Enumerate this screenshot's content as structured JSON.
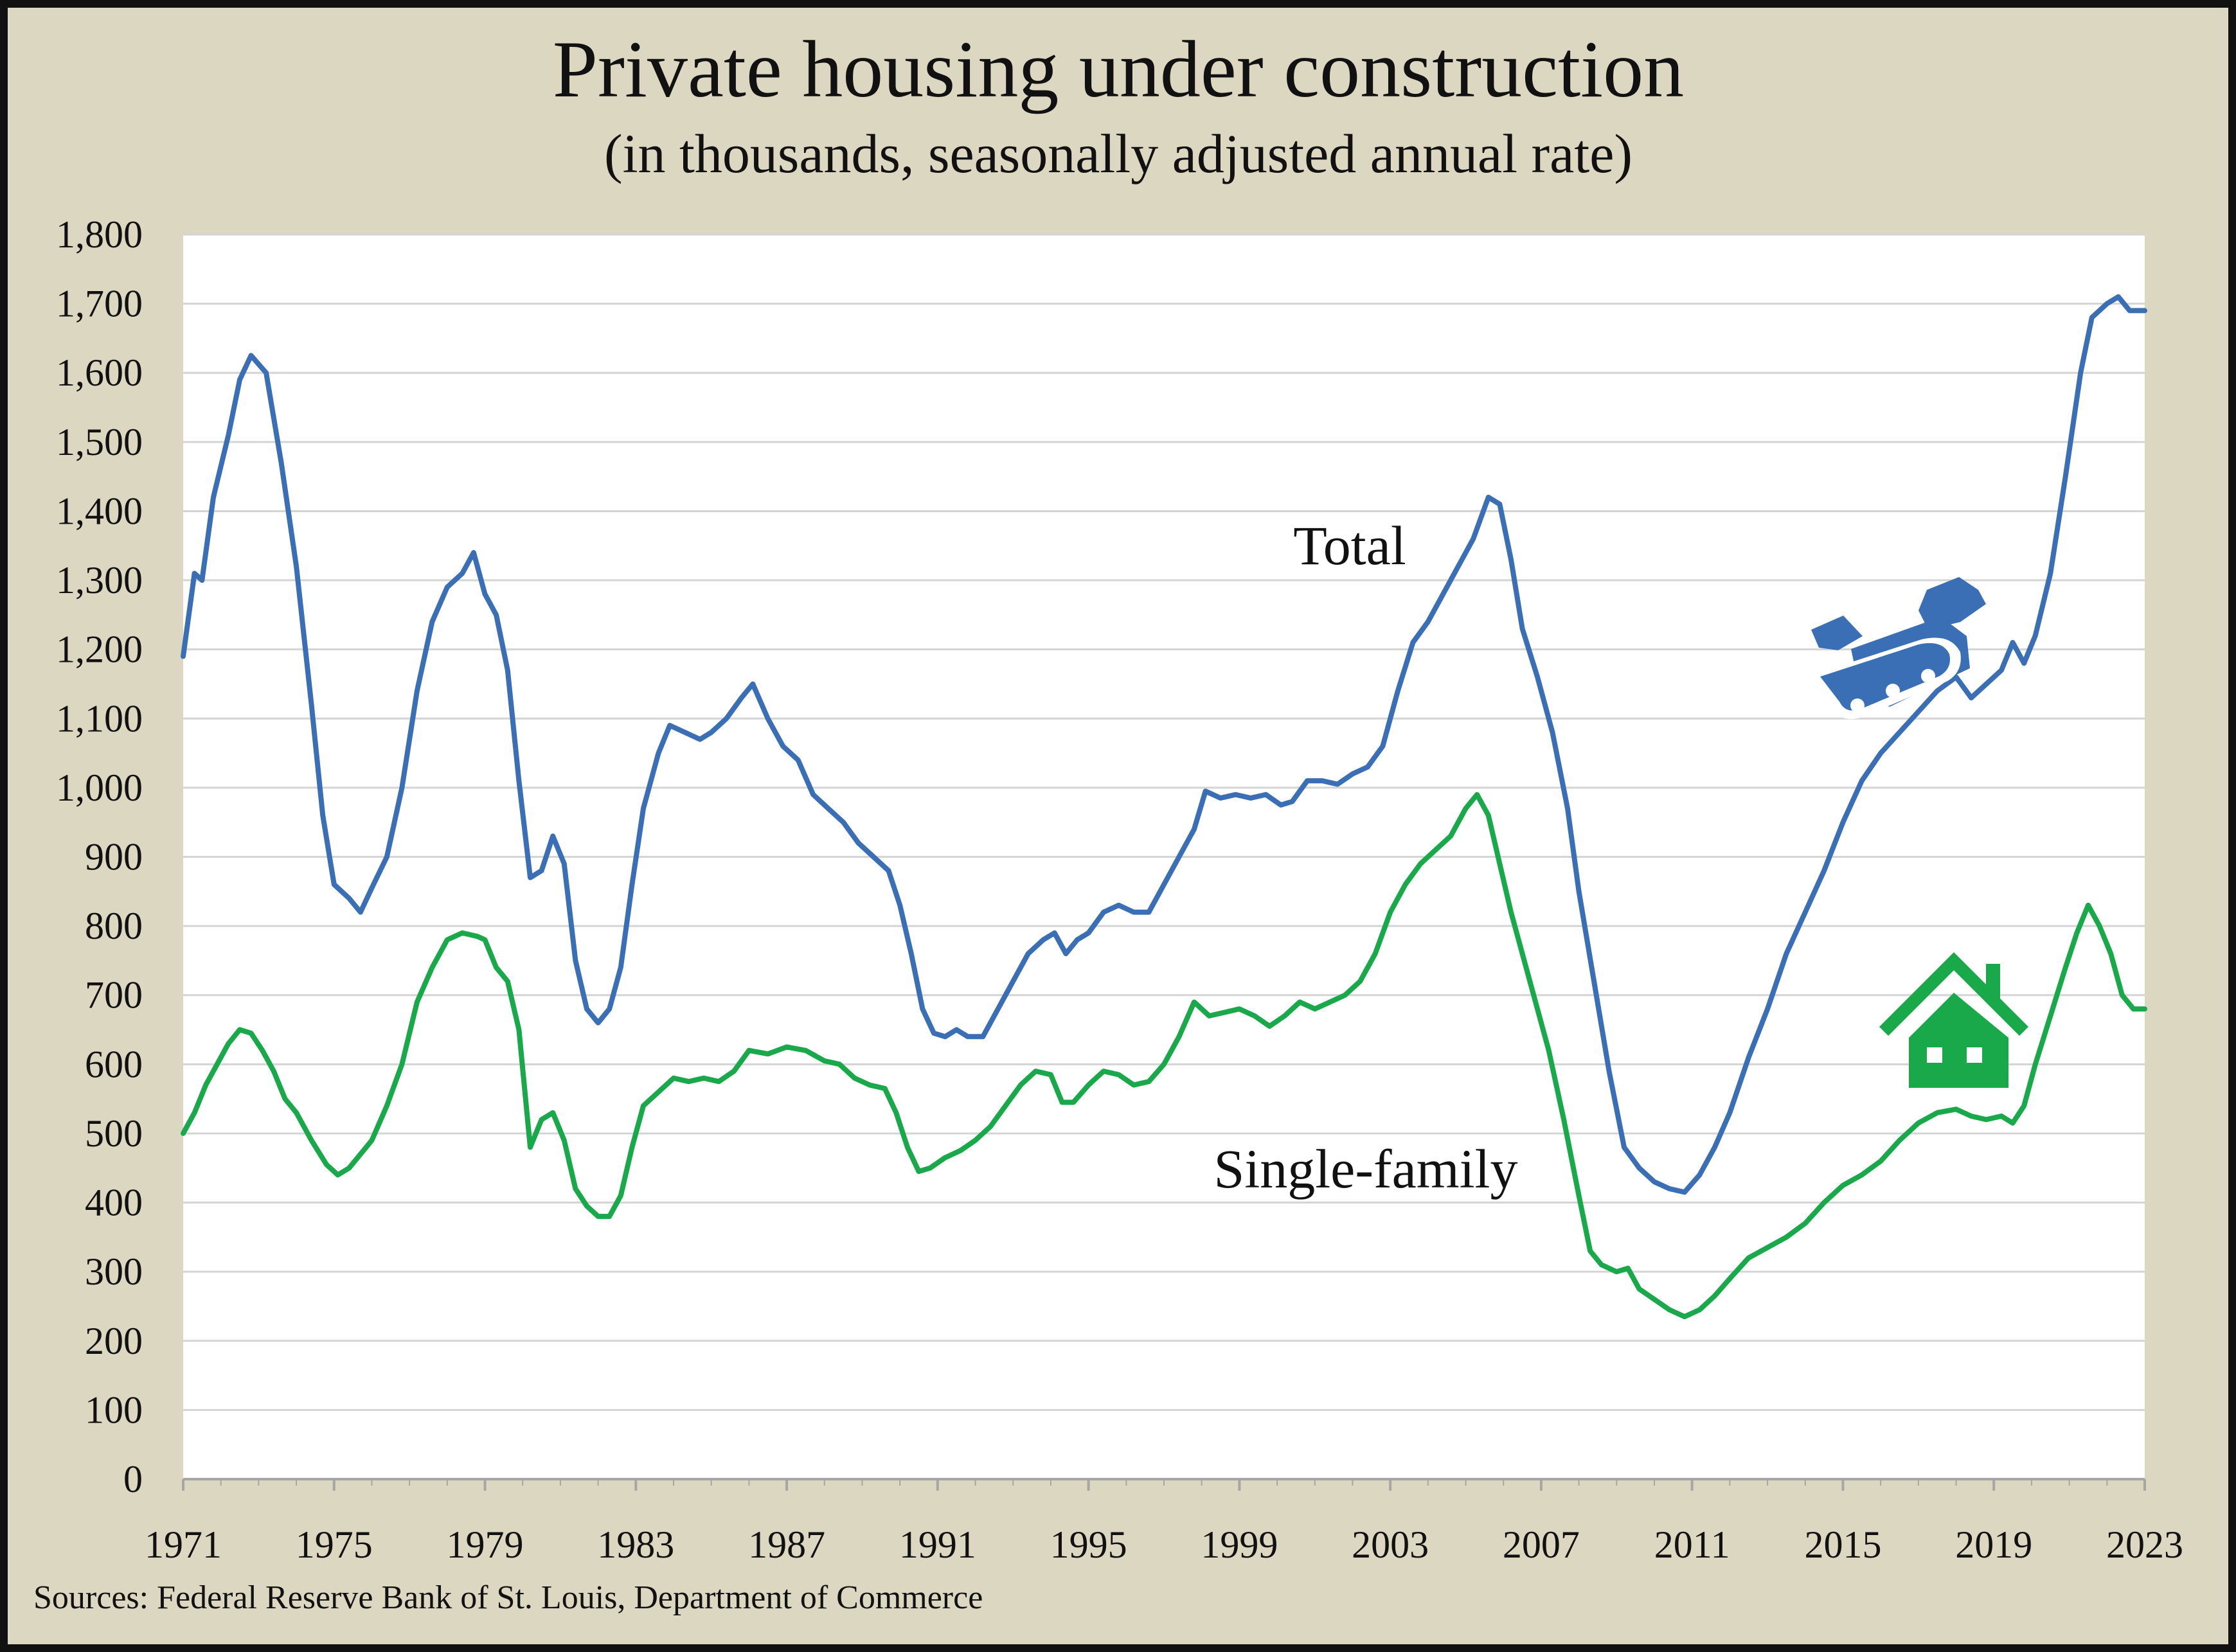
{
  "chart_data": {
    "type": "line",
    "title": "Private housing under construction",
    "subtitle": "(in thousands, seasonally adjusted annual rate)",
    "source": "Sources: Federal Reserve Bank of St. Louis, Department of Commerce",
    "xlabel": "",
    "ylabel": "",
    "xlim": [
      1971,
      2023
    ],
    "ylim": [
      0,
      1800
    ],
    "x_ticks": [
      "1971",
      "1975",
      "1979",
      "1983",
      "1987",
      "1991",
      "1995",
      "1999",
      "2003",
      "2007",
      "2011",
      "2015",
      "2019",
      "2023"
    ],
    "y_ticks": [
      "0",
      "100",
      "200",
      "300",
      "400",
      "500",
      "600",
      "700",
      "800",
      "900",
      "1,000",
      "1,100",
      "1,200",
      "1,300",
      "1,400",
      "1,500",
      "1,600",
      "1,700",
      "1,800"
    ],
    "grid": "horizontal",
    "series": [
      {
        "name": "Total",
        "color": "#3a6fb5",
        "icon": "bulldozer-icon",
        "points": [
          [
            1971.0,
            1190
          ],
          [
            1971.3,
            1310
          ],
          [
            1971.5,
            1300
          ],
          [
            1971.8,
            1420
          ],
          [
            1972.2,
            1510
          ],
          [
            1972.5,
            1590
          ],
          [
            1972.8,
            1625
          ],
          [
            1973.2,
            1600
          ],
          [
            1973.6,
            1470
          ],
          [
            1974.0,
            1320
          ],
          [
            1974.4,
            1120
          ],
          [
            1974.7,
            960
          ],
          [
            1975.0,
            860
          ],
          [
            1975.4,
            840
          ],
          [
            1975.7,
            820
          ],
          [
            1976.0,
            855
          ],
          [
            1976.4,
            900
          ],
          [
            1976.8,
            1000
          ],
          [
            1977.2,
            1140
          ],
          [
            1977.6,
            1240
          ],
          [
            1978.0,
            1290
          ],
          [
            1978.4,
            1310
          ],
          [
            1978.7,
            1340
          ],
          [
            1979.0,
            1280
          ],
          [
            1979.3,
            1250
          ],
          [
            1979.6,
            1170
          ],
          [
            1979.9,
            1010
          ],
          [
            1980.2,
            870
          ],
          [
            1980.5,
            880
          ],
          [
            1980.8,
            930
          ],
          [
            1981.1,
            890
          ],
          [
            1981.4,
            750
          ],
          [
            1981.7,
            680
          ],
          [
            1982.0,
            660
          ],
          [
            1982.3,
            680
          ],
          [
            1982.6,
            740
          ],
          [
            1982.9,
            860
          ],
          [
            1983.2,
            970
          ],
          [
            1983.6,
            1050
          ],
          [
            1983.9,
            1090
          ],
          [
            1984.3,
            1080
          ],
          [
            1984.7,
            1070
          ],
          [
            1985.0,
            1080
          ],
          [
            1985.4,
            1100
          ],
          [
            1985.8,
            1130
          ],
          [
            1986.1,
            1150
          ],
          [
            1986.5,
            1100
          ],
          [
            1986.9,
            1060
          ],
          [
            1987.3,
            1040
          ],
          [
            1987.7,
            990
          ],
          [
            1988.1,
            970
          ],
          [
            1988.5,
            950
          ],
          [
            1988.9,
            920
          ],
          [
            1989.3,
            900
          ],
          [
            1989.7,
            880
          ],
          [
            1990.0,
            830
          ],
          [
            1990.3,
            760
          ],
          [
            1990.6,
            680
          ],
          [
            1990.9,
            645
          ],
          [
            1991.2,
            640
          ],
          [
            1991.5,
            650
          ],
          [
            1991.8,
            640
          ],
          [
            1992.2,
            640
          ],
          [
            1992.6,
            680
          ],
          [
            1993.0,
            720
          ],
          [
            1993.4,
            760
          ],
          [
            1993.8,
            780
          ],
          [
            1994.1,
            790
          ],
          [
            1994.4,
            760
          ],
          [
            1994.7,
            780
          ],
          [
            1995.0,
            790
          ],
          [
            1995.4,
            820
          ],
          [
            1995.8,
            830
          ],
          [
            1996.2,
            820
          ],
          [
            1996.6,
            820
          ],
          [
            1997.0,
            860
          ],
          [
            1997.4,
            900
          ],
          [
            1997.8,
            940
          ],
          [
            1998.1,
            995
          ],
          [
            1998.5,
            985
          ],
          [
            1998.9,
            990
          ],
          [
            1999.3,
            985
          ],
          [
            1999.7,
            990
          ],
          [
            2000.1,
            975
          ],
          [
            2000.4,
            980
          ],
          [
            2000.8,
            1010
          ],
          [
            2001.2,
            1010
          ],
          [
            2001.6,
            1005
          ],
          [
            2002.0,
            1020
          ],
          [
            2002.4,
            1030
          ],
          [
            2002.8,
            1060
          ],
          [
            2003.2,
            1140
          ],
          [
            2003.6,
            1210
          ],
          [
            2004.0,
            1240
          ],
          [
            2004.4,
            1280
          ],
          [
            2004.8,
            1320
          ],
          [
            2005.2,
            1360
          ],
          [
            2005.6,
            1420
          ],
          [
            2005.9,
            1410
          ],
          [
            2006.2,
            1330
          ],
          [
            2006.5,
            1230
          ],
          [
            2006.9,
            1160
          ],
          [
            2007.3,
            1080
          ],
          [
            2007.7,
            970
          ],
          [
            2008.0,
            850
          ],
          [
            2008.4,
            720
          ],
          [
            2008.8,
            590
          ],
          [
            2009.2,
            480
          ],
          [
            2009.6,
            450
          ],
          [
            2010.0,
            430
          ],
          [
            2010.4,
            420
          ],
          [
            2010.8,
            415
          ],
          [
            2011.2,
            440
          ],
          [
            2011.6,
            480
          ],
          [
            2012.0,
            530
          ],
          [
            2012.5,
            610
          ],
          [
            2013.0,
            680
          ],
          [
            2013.5,
            760
          ],
          [
            2014.0,
            820
          ],
          [
            2014.5,
            880
          ],
          [
            2015.0,
            950
          ],
          [
            2015.5,
            1010
          ],
          [
            2016.0,
            1050
          ],
          [
            2016.5,
            1080
          ],
          [
            2017.0,
            1110
          ],
          [
            2017.5,
            1140
          ],
          [
            2018.0,
            1160
          ],
          [
            2018.4,
            1130
          ],
          [
            2018.8,
            1150
          ],
          [
            2019.2,
            1170
          ],
          [
            2019.5,
            1210
          ],
          [
            2019.8,
            1180
          ],
          [
            2020.1,
            1220
          ],
          [
            2020.5,
            1310
          ],
          [
            2020.9,
            1450
          ],
          [
            2021.3,
            1600
          ],
          [
            2021.6,
            1680
          ],
          [
            2022.0,
            1700
          ],
          [
            2022.3,
            1710
          ],
          [
            2022.6,
            1690
          ],
          [
            2023.0,
            1690
          ]
        ]
      },
      {
        "name": "Single-family",
        "color": "#19a84a",
        "icon": "house-icon",
        "points": [
          [
            1971.0,
            500
          ],
          [
            1971.3,
            530
          ],
          [
            1971.6,
            570
          ],
          [
            1971.9,
            600
          ],
          [
            1972.2,
            630
          ],
          [
            1972.5,
            650
          ],
          [
            1972.8,
            645
          ],
          [
            1973.1,
            620
          ],
          [
            1973.4,
            590
          ],
          [
            1973.7,
            550
          ],
          [
            1974.0,
            530
          ],
          [
            1974.4,
            490
          ],
          [
            1974.8,
            455
          ],
          [
            1975.1,
            440
          ],
          [
            1975.4,
            450
          ],
          [
            1975.7,
            470
          ],
          [
            1976.0,
            490
          ],
          [
            1976.4,
            540
          ],
          [
            1976.8,
            600
          ],
          [
            1977.2,
            690
          ],
          [
            1977.6,
            740
          ],
          [
            1978.0,
            780
          ],
          [
            1978.4,
            790
          ],
          [
            1978.8,
            785
          ],
          [
            1979.0,
            780
          ],
          [
            1979.3,
            740
          ],
          [
            1979.6,
            720
          ],
          [
            1979.9,
            650
          ],
          [
            1980.2,
            480
          ],
          [
            1980.5,
            520
          ],
          [
            1980.8,
            530
          ],
          [
            1981.1,
            490
          ],
          [
            1981.4,
            420
          ],
          [
            1981.7,
            395
          ],
          [
            1982.0,
            380
          ],
          [
            1982.3,
            380
          ],
          [
            1982.6,
            410
          ],
          [
            1982.9,
            480
          ],
          [
            1983.2,
            540
          ],
          [
            1983.6,
            560
          ],
          [
            1984.0,
            580
          ],
          [
            1984.4,
            575
          ],
          [
            1984.8,
            580
          ],
          [
            1985.2,
            575
          ],
          [
            1985.6,
            590
          ],
          [
            1986.0,
            620
          ],
          [
            1986.5,
            615
          ],
          [
            1987.0,
            625
          ],
          [
            1987.5,
            620
          ],
          [
            1988.0,
            605
          ],
          [
            1988.4,
            600
          ],
          [
            1988.8,
            580
          ],
          [
            1989.2,
            570
          ],
          [
            1989.6,
            565
          ],
          [
            1989.9,
            530
          ],
          [
            1990.2,
            480
          ],
          [
            1990.5,
            445
          ],
          [
            1990.8,
            450
          ],
          [
            1991.2,
            465
          ],
          [
            1991.6,
            475
          ],
          [
            1992.0,
            490
          ],
          [
            1992.4,
            510
          ],
          [
            1992.8,
            540
          ],
          [
            1993.2,
            570
          ],
          [
            1993.6,
            590
          ],
          [
            1994.0,
            585
          ],
          [
            1994.3,
            545
          ],
          [
            1994.6,
            545
          ],
          [
            1995.0,
            570
          ],
          [
            1995.4,
            590
          ],
          [
            1995.8,
            585
          ],
          [
            1996.2,
            570
          ],
          [
            1996.6,
            575
          ],
          [
            1997.0,
            600
          ],
          [
            1997.4,
            640
          ],
          [
            1997.8,
            690
          ],
          [
            1998.2,
            670
          ],
          [
            1998.6,
            675
          ],
          [
            1999.0,
            680
          ],
          [
            1999.4,
            670
          ],
          [
            1999.8,
            655
          ],
          [
            2000.2,
            670
          ],
          [
            2000.6,
            690
          ],
          [
            2001.0,
            680
          ],
          [
            2001.4,
            690
          ],
          [
            2001.8,
            700
          ],
          [
            2002.2,
            720
          ],
          [
            2002.6,
            760
          ],
          [
            2003.0,
            820
          ],
          [
            2003.4,
            860
          ],
          [
            2003.8,
            890
          ],
          [
            2004.2,
            910
          ],
          [
            2004.6,
            930
          ],
          [
            2005.0,
            970
          ],
          [
            2005.3,
            990
          ],
          [
            2005.6,
            960
          ],
          [
            2005.9,
            890
          ],
          [
            2006.2,
            820
          ],
          [
            2006.5,
            760
          ],
          [
            2006.8,
            700
          ],
          [
            2007.2,
            620
          ],
          [
            2007.6,
            520
          ],
          [
            2008.0,
            410
          ],
          [
            2008.3,
            330
          ],
          [
            2008.6,
            310
          ],
          [
            2009.0,
            300
          ],
          [
            2009.3,
            305
          ],
          [
            2009.6,
            275
          ],
          [
            2010.0,
            260
          ],
          [
            2010.4,
            245
          ],
          [
            2010.8,
            235
          ],
          [
            2011.2,
            245
          ],
          [
            2011.6,
            265
          ],
          [
            2012.0,
            290
          ],
          [
            2012.5,
            320
          ],
          [
            2013.0,
            335
          ],
          [
            2013.5,
            350
          ],
          [
            2014.0,
            370
          ],
          [
            2014.5,
            400
          ],
          [
            2015.0,
            425
          ],
          [
            2015.5,
            440
          ],
          [
            2016.0,
            460
          ],
          [
            2016.5,
            490
          ],
          [
            2017.0,
            515
          ],
          [
            2017.5,
            530
          ],
          [
            2018.0,
            535
          ],
          [
            2018.4,
            525
          ],
          [
            2018.8,
            520
          ],
          [
            2019.2,
            525
          ],
          [
            2019.5,
            515
          ],
          [
            2019.8,
            540
          ],
          [
            2020.1,
            600
          ],
          [
            2020.5,
            670
          ],
          [
            2020.9,
            740
          ],
          [
            2021.2,
            790
          ],
          [
            2021.5,
            830
          ],
          [
            2021.8,
            800
          ],
          [
            2022.1,
            760
          ],
          [
            2022.4,
            700
          ],
          [
            2022.7,
            680
          ],
          [
            2023.0,
            680
          ]
        ]
      }
    ]
  }
}
